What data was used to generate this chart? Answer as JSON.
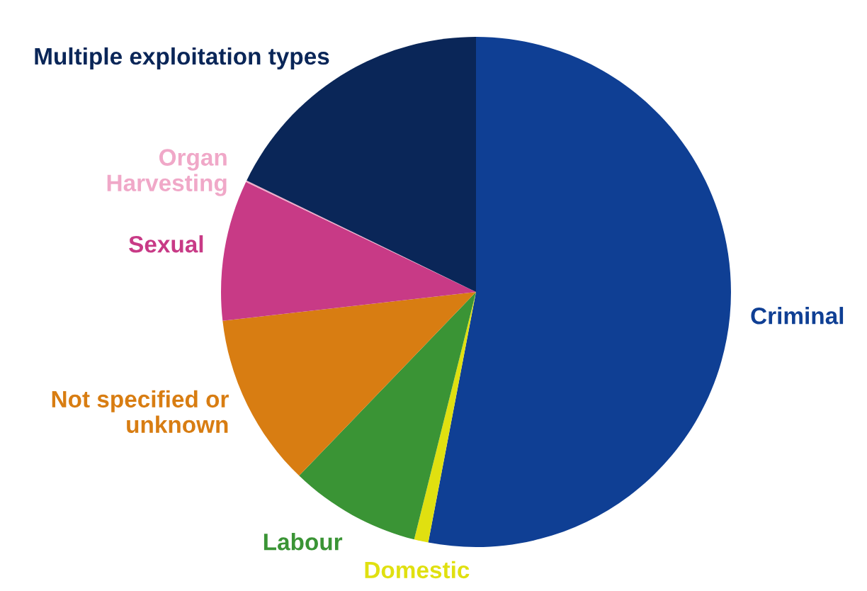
{
  "chart_data": {
    "type": "pie",
    "categories": [
      "Criminal",
      "Domestic",
      "Labour",
      "Not specified or\nunknown",
      "Sexual",
      "Organ\nHarvesting",
      "Multiple exploitation types"
    ],
    "values": [
      53.0,
      0.9,
      8.3,
      11.0,
      8.9,
      0.1,
      17.8
    ],
    "colors": [
      "#0f3f94",
      "#e0e010",
      "#3a9435",
      "#d87d12",
      "#c83a86",
      "#f0a8c8",
      "#0a2658"
    ]
  }
}
